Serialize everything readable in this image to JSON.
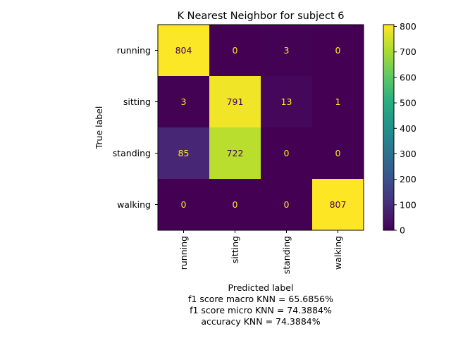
{
  "chart_data": {
    "type": "heatmap",
    "title": "K Nearest Neighbor for subject 6",
    "xlabel": "Predicted label",
    "ylabel": "True label",
    "x_categories": [
      "running",
      "sitting",
      "standing",
      "walking"
    ],
    "y_categories": [
      "running",
      "sitting",
      "standing",
      "walking"
    ],
    "values": [
      [
        804,
        0,
        3,
        0
      ],
      [
        3,
        791,
        13,
        1
      ],
      [
        85,
        722,
        0,
        0
      ],
      [
        0,
        0,
        0,
        807
      ]
    ],
    "colormap": "viridis",
    "colorbar": {
      "min": 0,
      "max": 807,
      "ticks": [
        0,
        100,
        200,
        300,
        400,
        500,
        600,
        700,
        800
      ]
    },
    "text_colors": {
      "on_dark": "#fde725",
      "on_light": "#440154"
    }
  },
  "metrics": [
    "f1 score macro KNN = 65.6856%",
    "f1 score micro KNN = 74.3884%",
    "accuracy KNN = 74.3884%"
  ]
}
